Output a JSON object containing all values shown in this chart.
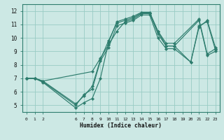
{
  "xlabel": "Humidex (Indice chaleur)",
  "bg_color": "#cce8e4",
  "grid_color": "#99ccc4",
  "line_color": "#2e7d6e",
  "spine_color": "#2e7d6e",
  "xlim": [
    -0.5,
    23.5
  ],
  "ylim": [
    4.5,
    12.5
  ],
  "xticks": [
    0,
    1,
    2,
    6,
    7,
    8,
    9,
    10,
    11,
    12,
    13,
    14,
    15,
    16,
    17,
    18,
    19,
    20,
    21,
    22,
    23
  ],
  "xticklabels": [
    "0",
    "1",
    "2",
    "6",
    "7",
    "8",
    "9",
    "10",
    "11",
    "12",
    "13",
    "14",
    "15",
    "16",
    "17",
    "18",
    "19",
    "20",
    "21",
    "22",
    "23"
  ],
  "yticks": [
    5,
    6,
    7,
    8,
    9,
    10,
    11,
    12
  ],
  "yticklabels": [
    "5",
    "6",
    "7",
    "8",
    "9",
    "10",
    "11",
    "12"
  ],
  "series": [
    {
      "x": [
        0,
        1,
        2,
        6,
        7,
        8,
        9,
        10,
        11,
        12,
        13,
        14,
        15,
        16,
        17,
        18,
        21,
        22,
        23
      ],
      "y": [
        7.0,
        7.0,
        6.7,
        4.8,
        5.2,
        5.5,
        7.0,
        9.7,
        11.2,
        11.4,
        11.6,
        11.9,
        11.9,
        10.5,
        9.6,
        9.6,
        11.4,
        8.8,
        9.2
      ]
    },
    {
      "x": [
        0,
        1,
        2,
        6,
        7,
        8,
        9,
        10,
        11,
        12,
        13,
        14,
        15,
        16,
        17,
        18,
        21,
        22,
        23
      ],
      "y": [
        7.0,
        7.0,
        6.8,
        5.1,
        5.7,
        6.4,
        8.4,
        9.8,
        11.1,
        11.3,
        11.5,
        11.85,
        11.85,
        10.3,
        9.4,
        9.4,
        11.3,
        8.7,
        9.0
      ]
    },
    {
      "x": [
        0,
        1,
        2,
        8,
        9,
        10,
        11,
        12,
        13,
        14,
        15,
        16,
        17,
        18,
        20,
        21,
        22,
        23
      ],
      "y": [
        7.0,
        7.0,
        6.8,
        7.5,
        8.5,
        9.5,
        10.5,
        11.2,
        11.4,
        11.8,
        11.8,
        10.5,
        9.4,
        9.4,
        8.2,
        10.8,
        11.3,
        9.3
      ]
    },
    {
      "x": [
        0,
        1,
        2,
        6,
        7,
        8,
        9,
        10,
        11,
        12,
        13,
        14,
        15,
        16,
        17,
        18,
        20,
        21,
        22,
        23
      ],
      "y": [
        7.0,
        7.0,
        6.75,
        5.0,
        5.8,
        6.2,
        8.3,
        9.3,
        10.9,
        11.1,
        11.3,
        11.7,
        11.7,
        10.0,
        9.2,
        9.2,
        8.2,
        10.9,
        11.2,
        9.1
      ]
    }
  ]
}
